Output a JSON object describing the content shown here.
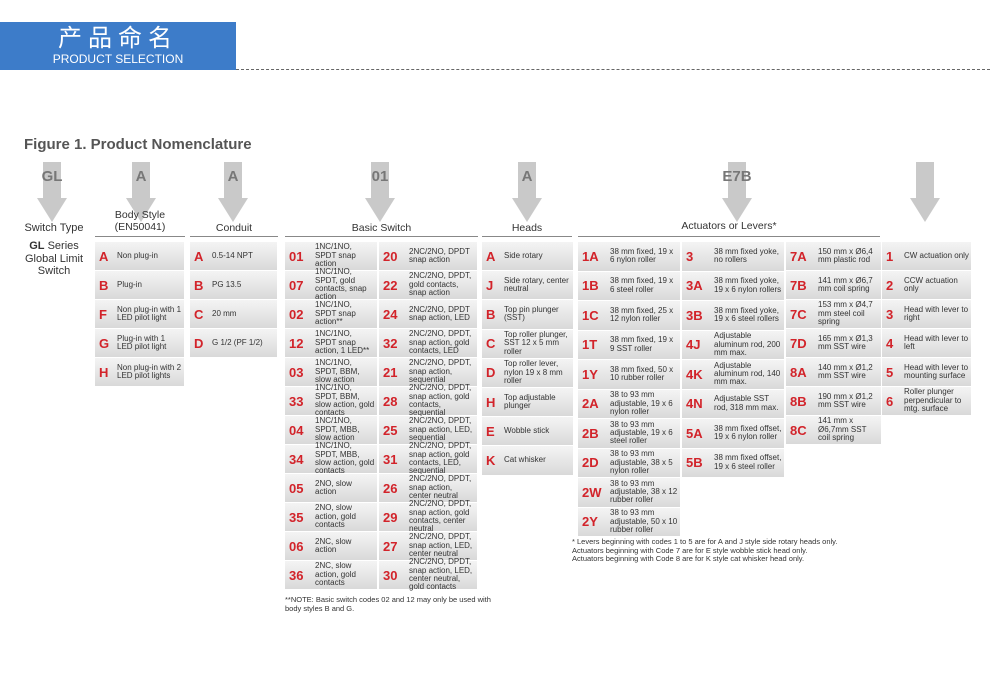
{
  "header": {
    "title_cn": "产品命名",
    "title_en": "PRODUCT SELECTION"
  },
  "figure_title": "Figure 1. Product Nomenclature",
  "top_codes": [
    "GL",
    "A",
    "A",
    "01",
    "A",
    "E7B"
  ],
  "switch_type": {
    "heading": "Switch Type",
    "code": "GL",
    "description": "Series Global Limit Switch"
  },
  "body_style": {
    "heading": "Body Style (EN50041)",
    "options": [
      {
        "code": "A",
        "text": "Non plug-in"
      },
      {
        "code": "B",
        "text": "Plug-in"
      },
      {
        "code": "F",
        "text": "Non plug-in with 1 LED pilot light"
      },
      {
        "code": "G",
        "text": "Plug-in with 1 LED pilot light"
      },
      {
        "code": "H",
        "text": "Non plug-in with 2 LED pilot lights"
      }
    ]
  },
  "conduit": {
    "heading": "Conduit",
    "options": [
      {
        "code": "A",
        "text": "0.5-14 NPT"
      },
      {
        "code": "B",
        "text": "PG 13.5"
      },
      {
        "code": "C",
        "text": "20 mm"
      },
      {
        "code": "D",
        "text": "G 1/2 (PF 1/2)"
      }
    ]
  },
  "basic_switch": {
    "heading": "Basic Switch",
    "columns": [
      [
        {
          "code": "01",
          "text": "1NC/1NO, SPDT snap action"
        },
        {
          "code": "07",
          "text": "1NC/1NO, SPDT, gold contacts, snap action"
        },
        {
          "code": "02",
          "text": "1NC/1NO, SPDT snap action**"
        },
        {
          "code": "12",
          "text": "1NC/1NO, SPDT snap action, 1 LED**"
        },
        {
          "code": "03",
          "text": "1NC/1NO, SPDT, BBM, slow action"
        },
        {
          "code": "33",
          "text": "1NC/1NO, SPDT, BBM, slow action, gold contacts"
        },
        {
          "code": "04",
          "text": "1NC/1NO, SPDT, MBB, slow action"
        },
        {
          "code": "34",
          "text": "1NC/1NO, SPDT, MBB, slow action, gold contacts"
        },
        {
          "code": "05",
          "text": "2NO, slow action"
        },
        {
          "code": "35",
          "text": "2NO, slow action, gold contacts"
        },
        {
          "code": "06",
          "text": "2NC, slow action"
        },
        {
          "code": "36",
          "text": "2NC, slow action, gold contacts"
        }
      ],
      [
        {
          "code": "20",
          "text": "2NC/2NO, DPDT snap action"
        },
        {
          "code": "22",
          "text": "2NC/2NO, DPDT, gold contacts, snap action"
        },
        {
          "code": "24",
          "text": "2NC/2NO, DPDT snap action, LED"
        },
        {
          "code": "32",
          "text": "2NC/2NO, DPDT, snap action, gold contacts, LED"
        },
        {
          "code": "21",
          "text": "2NC/2NO, DPDT, snap action, sequential"
        },
        {
          "code": "28",
          "text": "2NC/2NO, DPDT, snap action, gold contacts, sequential"
        },
        {
          "code": "25",
          "text": "2NC/2NO, DPDT, snap action, LED, sequential"
        },
        {
          "code": "31",
          "text": "2NC/2NO, DPDT, snap action, gold contacts, LED, sequential"
        },
        {
          "code": "26",
          "text": "2NC/2NO, DPDT, snap action, center neutral"
        },
        {
          "code": "29",
          "text": "2NC/2NO, DPDT, snap action, gold contacts, center neutral"
        },
        {
          "code": "27",
          "text": "2NC/2NO, DPDT, snap action, LED, center neutral"
        },
        {
          "code": "30",
          "text": "2NC/2NO, DPDT, snap action, LED, center neutral, gold contacts"
        }
      ]
    ],
    "note": "**NOTE: Basic switch codes 02 and 12 may only be used with body styles B and G."
  },
  "heads": {
    "heading": "Heads",
    "options": [
      {
        "code": "A",
        "text": "Side rotary"
      },
      {
        "code": "J",
        "text": "Side rotary, center neutral"
      },
      {
        "code": "B",
        "text": "Top pin plunger (SST)"
      },
      {
        "code": "C",
        "text": "Top roller plunger, SST 12 x 5 mm roller"
      },
      {
        "code": "D",
        "text": "Top roller lever, nylon 19 x 8 mm roller"
      },
      {
        "code": "H",
        "text": "Top adjustable plunger"
      },
      {
        "code": "E",
        "text": "Wobble stick"
      },
      {
        "code": "K",
        "text": "Cat whisker"
      }
    ]
  },
  "actuators": {
    "heading": "Actuators or Levers*",
    "columns": [
      [
        {
          "code": "1A",
          "text": "38 mm fixed, 19 x 6 nylon roller"
        },
        {
          "code": "1B",
          "text": "38 mm fixed, 19 x 6 steel roller"
        },
        {
          "code": "1C",
          "text": "38 mm fixed, 25 x 12 nylon roller"
        },
        {
          "code": "1T",
          "text": "38 mm fixed, 19 x 9 SST roller"
        },
        {
          "code": "1Y",
          "text": "38 mm fixed, 50 x 10 rubber roller"
        },
        {
          "code": "2A",
          "text": "38 to 93 mm adjustable, 19 x 6 nylon roller"
        },
        {
          "code": "2B",
          "text": "38 to 93 mm adjustable, 19 x 6 steel roller"
        },
        {
          "code": "2D",
          "text": "38 to 93 mm adjustable, 38 x 5 nylon roller"
        },
        {
          "code": "2W",
          "text": "38 to 93 mm adjustable, 38 x 12 rubber roller"
        },
        {
          "code": "2Y",
          "text": "38 to 93 mm adjustable, 50 x 10 rubber roller"
        }
      ],
      [
        {
          "code": "3",
          "text": "38 mm fixed yoke, no rollers"
        },
        {
          "code": "3A",
          "text": "38 mm fixed yoke, 19 x 6 nylon rollers"
        },
        {
          "code": "3B",
          "text": "38 mm fixed yoke, 19 x 6 steel rollers"
        },
        {
          "code": "4J",
          "text": "Adjustable aluminum rod, 200 mm max."
        },
        {
          "code": "4K",
          "text": "Adjustable aluminum rod, 140 mm max."
        },
        {
          "code": "4N",
          "text": "Adjustable SST rod, 318 mm max."
        },
        {
          "code": "5A",
          "text": "38 mm fixed offset, 19 x 6 nylon roller"
        },
        {
          "code": "5B",
          "text": "38 mm fixed offset, 19 x 6 steel roller"
        }
      ],
      [
        {
          "code": "7A",
          "text": "150 mm x Ø6,4 mm plastic rod"
        },
        {
          "code": "7B",
          "text": "141 mm x Ø6,7 mm coil spring"
        },
        {
          "code": "7C",
          "text": "153 mm x Ø4,7 mm steel coil spring"
        },
        {
          "code": "7D",
          "text": "165 mm x Ø1,3 mm SST wire"
        },
        {
          "code": "8A",
          "text": "140 mm x Ø1,2 mm SST wire"
        },
        {
          "code": "8B",
          "text": "190 mm x Ø1,2 mm SST wire"
        },
        {
          "code": "8C",
          "text": "141 mm x Ø6,7mm SST coil spring"
        }
      ],
      [
        {
          "code": "1",
          "text": "CW actuation only"
        },
        {
          "code": "2",
          "text": "CCW actuation only"
        },
        {
          "code": "3",
          "text": "Head with lever to right"
        },
        {
          "code": "4",
          "text": "Head with lever to left"
        },
        {
          "code": "5",
          "text": "Head with lever to mounting surface"
        },
        {
          "code": "6",
          "text": "Roller plunger perpendicular to mtg. surface"
        }
      ]
    ],
    "footnotes": [
      "* Levers beginning with codes 1 to 5 are for A and J style side rotary heads only.",
      "Actuators beginning with Code 7 are for E style wobble stick head only.",
      "Actuators beginning with Code 8 are for K style cat whisker head only."
    ]
  }
}
